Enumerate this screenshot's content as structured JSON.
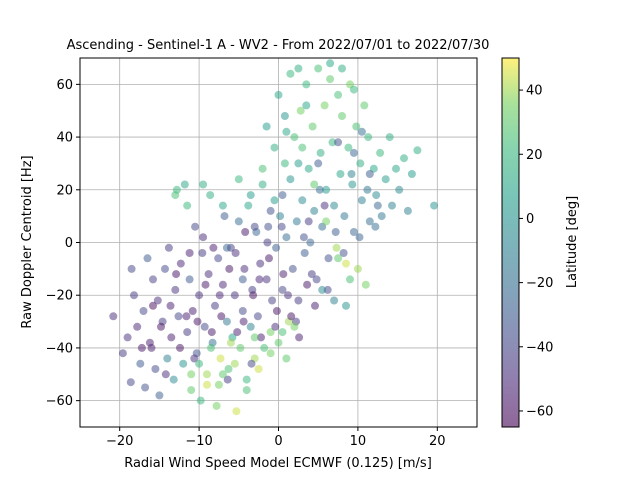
{
  "chart_data": {
    "type": "scatter",
    "title": "Ascending - Sentinel-1 A - WV2 - From 2022/07/01 to 2022/07/30",
    "xlabel": "Radial Wind Speed Model ECMWF (0.125) [m/s]",
    "ylabel": "Raw Doppler Centroid [Hz]",
    "xlim": [
      -25,
      25
    ],
    "ylim": [
      -70,
      70
    ],
    "xticks": [
      -20,
      -10,
      0,
      10,
      20
    ],
    "yticks": [
      -60,
      -40,
      -20,
      0,
      20,
      40,
      60
    ],
    "grid": true,
    "colorbar": {
      "label": "Latitude [deg]",
      "range": [
        -65,
        50
      ],
      "ticks": [
        -60,
        -40,
        -20,
        0,
        20,
        40
      ],
      "colormap": "viridis"
    },
    "point_alpha": 0.5,
    "points": [
      [
        -20.8,
        -28,
        -50
      ],
      [
        -19.6,
        -42,
        -45
      ],
      [
        -19.0,
        -36,
        -48
      ],
      [
        -18.6,
        -53,
        -40
      ],
      [
        -18.2,
        -20,
        -45
      ],
      [
        -17.8,
        -32,
        -52
      ],
      [
        -17.4,
        -46,
        -30
      ],
      [
        -17.0,
        -26,
        -40
      ],
      [
        -16.8,
        -55,
        -35
      ],
      [
        -16.5,
        -6,
        -30
      ],
      [
        -16.2,
        -38,
        -55
      ],
      [
        -15.8,
        -14,
        -42
      ],
      [
        -15.5,
        -48,
        -38
      ],
      [
        -15.2,
        -22,
        -50
      ],
      [
        -15.0,
        -58,
        -28
      ],
      [
        -14.6,
        -30,
        -45
      ],
      [
        -14.3,
        -10,
        -38
      ],
      [
        -14.0,
        -44,
        -10
      ],
      [
        -13.8,
        -2,
        -45
      ],
      [
        -13.5,
        -36,
        -55
      ],
      [
        -13.2,
        -52,
        -5
      ],
      [
        -13.0,
        -18,
        -48
      ],
      [
        -12.8,
        20,
        20
      ],
      [
        -12.6,
        -28,
        -40
      ],
      [
        -12.3,
        -8,
        -52
      ],
      [
        -12.0,
        -46,
        0
      ],
      [
        -11.8,
        22,
        10
      ],
      [
        -11.5,
        -34,
        -45
      ],
      [
        -11.2,
        -14,
        -30
      ],
      [
        -11.0,
        -56,
        30
      ],
      [
        -10.8,
        -26,
        -55
      ],
      [
        -10.5,
        6,
        -40
      ],
      [
        -10.3,
        -42,
        -35
      ],
      [
        -10.0,
        -20,
        -48
      ],
      [
        -9.8,
        -60,
        20
      ],
      [
        -9.6,
        -4,
        -45
      ],
      [
        -9.3,
        -32,
        -38
      ],
      [
        -9.0,
        -50,
        40
      ],
      [
        -8.8,
        -12,
        -50
      ],
      [
        -8.6,
        18,
        15
      ],
      [
        -8.3,
        -38,
        -20
      ],
      [
        -8.0,
        -24,
        -45
      ],
      [
        -7.8,
        -62,
        35
      ],
      [
        -7.6,
        -6,
        -40
      ],
      [
        -7.3,
        -44,
        45
      ],
      [
        -7.0,
        -16,
        -52
      ],
      [
        -6.8,
        10,
        -30
      ],
      [
        -6.5,
        -30,
        -15
      ],
      [
        -6.3,
        -48,
        25
      ],
      [
        -6.0,
        -2,
        -42
      ],
      [
        -5.8,
        -36,
        10
      ],
      [
        -5.5,
        -20,
        -48
      ],
      [
        -5.3,
        -64,
        45
      ],
      [
        -5.0,
        8,
        -20
      ],
      [
        -4.8,
        -40,
        30
      ],
      [
        -4.5,
        -26,
        -38
      ],
      [
        -4.3,
        -10,
        -50
      ],
      [
        -4.0,
        -52,
        20
      ],
      [
        -3.8,
        14,
        10
      ],
      [
        -3.5,
        -32,
        -10
      ],
      [
        -3.3,
        -18,
        -45
      ],
      [
        -3.0,
        -44,
        40
      ],
      [
        -2.8,
        4,
        -25
      ],
      [
        -2.6,
        -28,
        -40
      ],
      [
        -2.3,
        -8,
        -50
      ],
      [
        -2.0,
        22,
        15
      ],
      [
        -1.8,
        -40,
        25
      ],
      [
        -1.5,
        -14,
        -48
      ],
      [
        -1.3,
        6,
        -35
      ],
      [
        -1.0,
        -34,
        35
      ],
      [
        -0.8,
        -22,
        -42
      ],
      [
        -0.5,
        16,
        5
      ],
      [
        -0.3,
        -2,
        -30
      ],
      [
        0.0,
        -38,
        30
      ],
      [
        0.2,
        10,
        -10
      ],
      [
        0.5,
        -18,
        -40
      ],
      [
        0.8,
        30,
        20
      ],
      [
        1.0,
        2,
        -20
      ],
      [
        1.3,
        -30,
        40
      ],
      [
        1.5,
        24,
        0
      ],
      [
        1.8,
        -10,
        -35
      ],
      [
        2.0,
        40,
        25
      ],
      [
        2.3,
        8,
        -15
      ],
      [
        2.5,
        -22,
        -45
      ],
      [
        2.8,
        50,
        35
      ],
      [
        3.0,
        16,
        -5
      ],
      [
        3.3,
        -4,
        -30
      ],
      [
        3.5,
        60,
        20
      ],
      [
        3.8,
        28,
        10
      ],
      [
        4.0,
        0,
        -25
      ],
      [
        4.3,
        44,
        30
      ],
      [
        4.5,
        12,
        -10
      ],
      [
        4.8,
        -14,
        -40
      ],
      [
        5.0,
        66,
        25
      ],
      [
        5.3,
        34,
        15
      ],
      [
        5.5,
        6,
        -20
      ],
      [
        5.8,
        52,
        35
      ],
      [
        6.0,
        20,
        5
      ],
      [
        6.3,
        -6,
        -35
      ],
      [
        6.5,
        62,
        30
      ],
      [
        6.8,
        38,
        20
      ],
      [
        7.0,
        14,
        -5
      ],
      [
        7.3,
        -2,
        40
      ],
      [
        7.5,
        56,
        25
      ],
      [
        7.8,
        26,
        10
      ],
      [
        8.0,
        48,
        30
      ],
      [
        8.3,
        10,
        -15
      ],
      [
        8.5,
        -8,
        45
      ],
      [
        8.8,
        36,
        20
      ],
      [
        9.0,
        60,
        35
      ],
      [
        9.3,
        22,
        0
      ],
      [
        9.5,
        4,
        -25
      ],
      [
        9.8,
        44,
        25
      ],
      [
        10.0,
        -10,
        40
      ],
      [
        10.3,
        30,
        15
      ],
      [
        10.5,
        16,
        -10
      ],
      [
        10.8,
        52,
        30
      ],
      [
        11.0,
        -16,
        35
      ],
      [
        11.3,
        40,
        20
      ],
      [
        11.5,
        8,
        -20
      ],
      [
        12.0,
        28,
        10
      ],
      [
        12.3,
        18,
        -5
      ],
      [
        12.8,
        34,
        20
      ],
      [
        13.0,
        10,
        -15
      ],
      [
        13.5,
        24,
        5
      ],
      [
        14.0,
        40,
        15
      ],
      [
        14.3,
        14,
        -10
      ],
      [
        14.8,
        28,
        10
      ],
      [
        15.2,
        20,
        -5
      ],
      [
        15.8,
        32,
        15
      ],
      [
        16.3,
        12,
        -10
      ],
      [
        16.8,
        26,
        5
      ],
      [
        17.5,
        35,
        15
      ],
      [
        19.6,
        14,
        0
      ],
      [
        -16.0,
        -40,
        -55
      ],
      [
        -14.8,
        -32,
        -60
      ],
      [
        -13.6,
        -24,
        -55
      ],
      [
        -12.4,
        -40,
        -60
      ],
      [
        -11.2,
        -4,
        -55
      ],
      [
        -10.2,
        -30,
        -60
      ],
      [
        -9.2,
        -16,
        -58
      ],
      [
        -8.2,
        -2,
        -55
      ],
      [
        -7.2,
        -28,
        -60
      ],
      [
        -6.2,
        -10,
        -58
      ],
      [
        -5.2,
        -34,
        -55
      ],
      [
        -4.2,
        4,
        -58
      ],
      [
        -3.2,
        -20,
        -60
      ],
      [
        -2.2,
        -36,
        -55
      ],
      [
        -1.2,
        -6,
        -58
      ],
      [
        -0.2,
        -26,
        -60
      ],
      [
        0.6,
        -12,
        -55
      ],
      [
        1.6,
        -28,
        -58
      ],
      [
        2.6,
        -36,
        -55
      ],
      [
        3.6,
        -16,
        -58
      ],
      [
        4.6,
        -24,
        -55
      ],
      [
        -18.5,
        -10,
        -40
      ],
      [
        -17.2,
        -40,
        -58
      ],
      [
        -15.8,
        -24,
        -62
      ],
      [
        -14.2,
        -50,
        -50
      ],
      [
        -12.9,
        -12,
        -60
      ],
      [
        -11.6,
        -28,
        -55
      ],
      [
        -10.6,
        -44,
        -48
      ],
      [
        -9.5,
        2,
        -50
      ],
      [
        -8.4,
        -34,
        -58
      ],
      [
        -7.4,
        -20,
        -52
      ],
      [
        -6.4,
        -52,
        -45
      ],
      [
        -5.4,
        -4,
        -50
      ],
      [
        -4.4,
        -30,
        -55
      ],
      [
        -3.4,
        -46,
        -40
      ],
      [
        -2.4,
        -14,
        -52
      ],
      [
        -1.4,
        0,
        -45
      ],
      [
        -0.4,
        -32,
        -50
      ],
      [
        0.4,
        6,
        -40
      ],
      [
        1.2,
        -20,
        -48
      ],
      [
        2.2,
        -30,
        -45
      ],
      [
        3.2,
        2,
        -35
      ],
      [
        4.2,
        -12,
        -45
      ],
      [
        5.2,
        20,
        -20
      ],
      [
        6.2,
        -18,
        -40
      ],
      [
        7.2,
        4,
        -30
      ],
      [
        8.2,
        -4,
        -35
      ],
      [
        9.2,
        26,
        -10
      ],
      [
        10.2,
        2,
        -25
      ],
      [
        11.2,
        20,
        -15
      ],
      [
        12.2,
        6,
        -20
      ],
      [
        -11.0,
        -50,
        35
      ],
      [
        -9.0,
        -54,
        45
      ],
      [
        -7.0,
        -50,
        30
      ],
      [
        -5.5,
        -46,
        40
      ],
      [
        -4.0,
        -56,
        25
      ],
      [
        -2.5,
        -48,
        45
      ],
      [
        -1.0,
        -42,
        35
      ],
      [
        -8.5,
        -40,
        25
      ],
      [
        -6.0,
        -38,
        40
      ],
      [
        -3.0,
        -36,
        30
      ],
      [
        -10.0,
        -46,
        20
      ],
      [
        -7.5,
        -54,
        35
      ],
      [
        0.5,
        -34,
        25
      ],
      [
        2.0,
        -32,
        35
      ],
      [
        1.0,
        -44,
        30
      ],
      [
        -13.0,
        18,
        25
      ],
      [
        -11.5,
        14,
        20
      ],
      [
        -9.5,
        22,
        15
      ],
      [
        -7.0,
        14,
        10
      ],
      [
        -5.0,
        24,
        20
      ],
      [
        -3.5,
        18,
        5
      ],
      [
        -2.0,
        28,
        25
      ],
      [
        -0.5,
        36,
        15
      ],
      [
        1.0,
        42,
        10
      ],
      [
        2.5,
        30,
        5
      ],
      [
        0.0,
        56,
        10
      ],
      [
        1.5,
        64,
        20
      ],
      [
        2.5,
        66,
        15
      ],
      [
        3.5,
        52,
        10
      ],
      [
        -1.5,
        44,
        5
      ],
      [
        0.8,
        48,
        0
      ],
      [
        6.5,
        68,
        10
      ],
      [
        8.0,
        66,
        15
      ],
      [
        9.5,
        58,
        20
      ],
      [
        3.0,
        36,
        25
      ],
      [
        4.5,
        22,
        30
      ],
      [
        6.0,
        8,
        35
      ],
      [
        7.5,
        -6,
        30
      ],
      [
        9.0,
        -14,
        25
      ],
      [
        5.5,
        -18,
        -5
      ],
      [
        7.0,
        -22,
        -10
      ],
      [
        8.5,
        -24,
        0
      ],
      [
        5.0,
        30,
        -30
      ],
      [
        7.5,
        38,
        -35
      ],
      [
        9.5,
        34,
        -25
      ],
      [
        10.5,
        42,
        -20
      ],
      [
        11.5,
        26,
        -30
      ],
      [
        12.5,
        14,
        -25
      ],
      [
        3.8,
        8,
        -45
      ],
      [
        5.8,
        14,
        -50
      ],
      [
        -3.0,
        6,
        -40
      ],
      [
        -1.0,
        12,
        -35
      ],
      [
        0.5,
        18,
        -30
      ],
      [
        -4.5,
        -14,
        -30
      ],
      [
        -6.5,
        -2,
        -25
      ]
    ]
  }
}
